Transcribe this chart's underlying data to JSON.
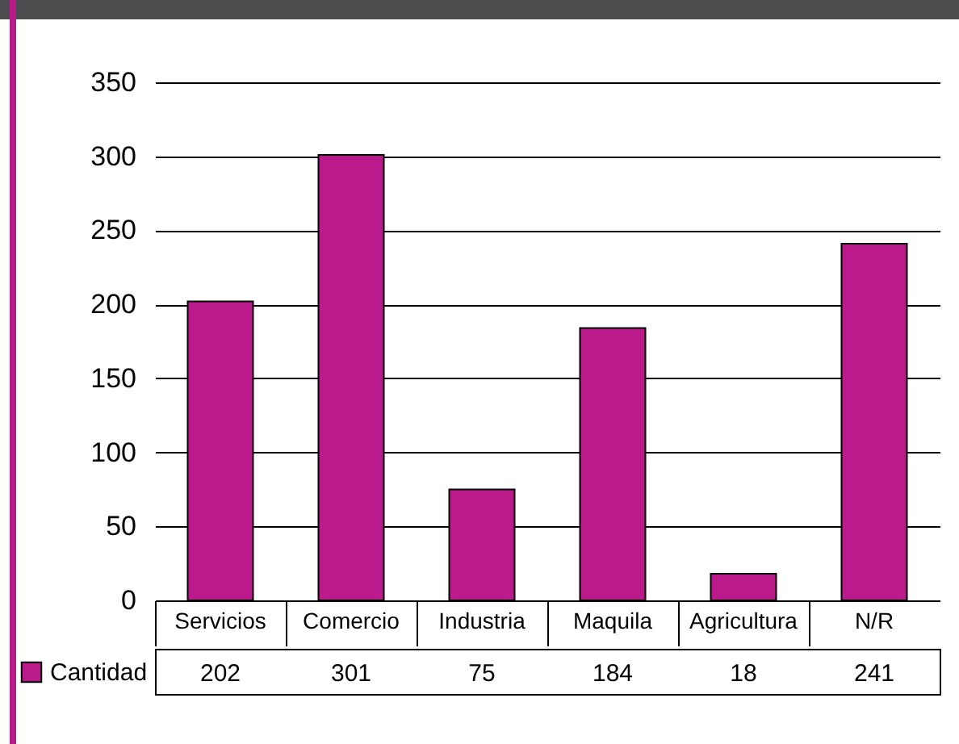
{
  "chart_data": {
    "type": "bar",
    "categories": [
      "Servicios",
      "Comercio",
      "Industria",
      "Maquila",
      "Agricultura",
      "N/R"
    ],
    "series": [
      {
        "name": "Cantidad",
        "color": "#bb1a8a",
        "values": [
          202,
          301,
          75,
          184,
          18,
          241
        ]
      }
    ],
    "ylim": [
      0,
      350
    ],
    "yticks": [
      0,
      50,
      100,
      150,
      200,
      250,
      300,
      350
    ],
    "grid": "y",
    "legend": "bottom left",
    "data_labels": true
  }
}
